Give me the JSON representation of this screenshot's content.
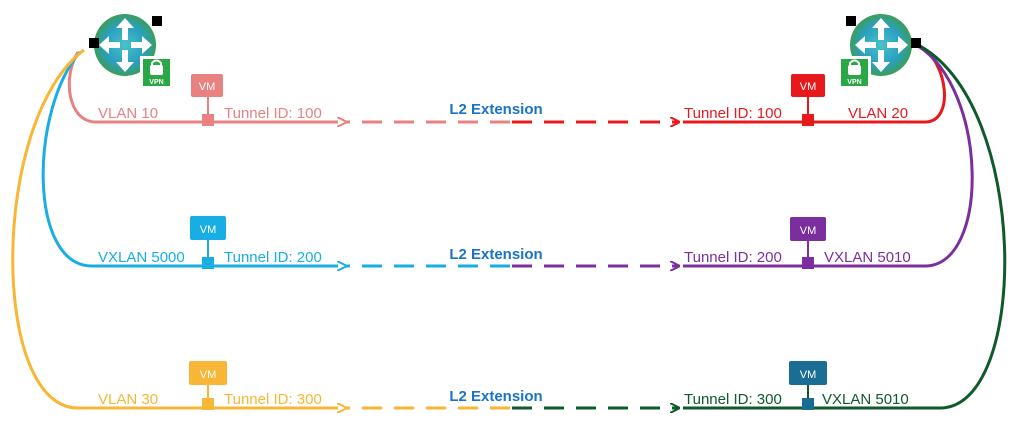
{
  "vm_label": "VM",
  "vpn_label": "VPN",
  "extension_label": "L2 Extension",
  "icons": {
    "router": "router-icon",
    "vpn": "vpn-lock-icon"
  },
  "rows": [
    {
      "left_network": "VLAN 10",
      "left_tunnel": "Tunnel ID: 100",
      "right_tunnel": "Tunnel ID: 100",
      "right_network": "VLAN 20",
      "left_color": "#e8817f",
      "right_color": "#e8191d"
    },
    {
      "left_network": "VXLAN 5000",
      "left_tunnel": "Tunnel ID: 200",
      "right_tunnel": "Tunnel ID: 200",
      "right_network": "VXLAN 5010",
      "left_color": "#19aee3",
      "right_color": "#7b2f9e"
    },
    {
      "left_network": "VLAN 30",
      "left_tunnel": "Tunnel ID: 300",
      "right_tunnel": "Tunnel ID: 300",
      "right_network": "VXLAN 5010",
      "left_color": "#f8b634",
      "right_color": "#0f5a2a",
      "right_vm_color": "#1a6e94"
    }
  ]
}
